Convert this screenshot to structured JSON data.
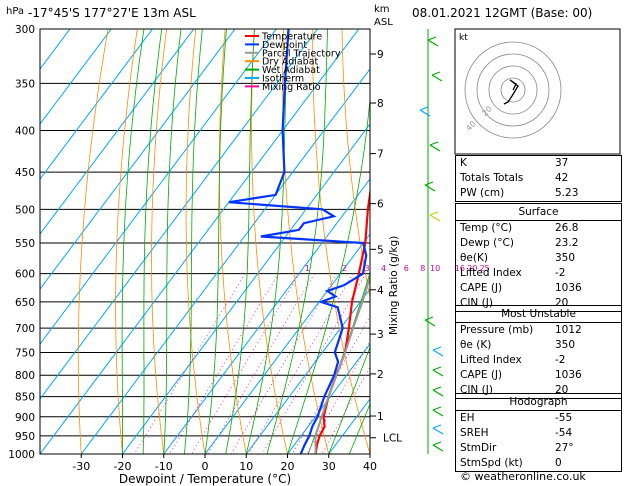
{
  "header": {
    "location": "-17°45'S  177°27'E  13m  ASL",
    "datetime": "08.01.2021  12GMT  (Base: 00)",
    "hpa_unit": "hPa",
    "km_unit": "km",
    "asl_unit": "ASL",
    "mixing_ratio_axis": "Mixing Ratio (g/kg)"
  },
  "legend": [
    {
      "label": "Temperature",
      "color": "#ff0000"
    },
    {
      "label": "Dewpoint",
      "color": "#0033ff"
    },
    {
      "label": "Parcel Trajectory",
      "color": "#999999"
    },
    {
      "label": "Dry Adiabat",
      "color": "#ff8c00"
    },
    {
      "label": "Wet Adiabat",
      "color": "#00aa00"
    },
    {
      "label": "Isotherm",
      "color": "#00aaff"
    },
    {
      "label": "Mixing Ratio",
      "color": "#ff00aa"
    }
  ],
  "chart_data": {
    "type": "line",
    "title": "",
    "xlabel": "Dewpoint / Temperature (°C)",
    "ylabel": "hPa",
    "x_ticks": [
      "-30",
      "-20",
      "-10",
      "0",
      "10",
      "20",
      "30",
      "40"
    ],
    "pressure_levels": [
      "300",
      "350",
      "400",
      "450",
      "500",
      "550",
      "600",
      "650",
      "700",
      "750",
      "800",
      "850",
      "900",
      "950",
      "1000"
    ],
    "km_ticks": [
      {
        "label": "9",
        "p": 322
      },
      {
        "label": "8",
        "p": 370
      },
      {
        "label": "7",
        "p": 427
      },
      {
        "label": "6",
        "p": 492
      },
      {
        "label": "5",
        "p": 560
      },
      {
        "label": "4",
        "p": 628
      },
      {
        "label": "3",
        "p": 712
      },
      {
        "label": "2",
        "p": 797
      },
      {
        "label": "1",
        "p": 898
      },
      {
        "label": "LCL",
        "p": 955
      }
    ],
    "mixing_ratio_labels": [
      {
        "label": "1",
        "t": -8
      },
      {
        "label": "2",
        "t": 1
      },
      {
        "label": "3",
        "t": 6.5
      },
      {
        "label": "4",
        "t": 10.5
      },
      {
        "label": "6",
        "t": 16
      },
      {
        "label": "8",
        "t": 20
      },
      {
        "label": "10",
        "t": 23
      },
      {
        "label": "16",
        "t": 29
      },
      {
        "label": "20",
        "t": 32
      },
      {
        "label": "25",
        "t": 35
      }
    ],
    "series": [
      {
        "name": "Temperature",
        "color": "#ff0000",
        "p": [
          1000,
          975,
          950,
          925,
          900,
          850,
          800,
          750,
          700,
          650,
          600,
          550,
          500,
          450,
          400,
          350
        ],
        "t": [
          26.8,
          25.5,
          24.5,
          24.0,
          22.0,
          19.5,
          17.5,
          15.5,
          12.0,
          8.0,
          4.5,
          0.5,
          -5.0,
          -10.5,
          -17.0,
          -25.0
        ]
      },
      {
        "name": "Dewpoint",
        "color": "#0033ff",
        "p": [
          1000,
          975,
          950,
          925,
          900,
          850,
          800,
          770,
          750,
          700,
          660,
          650,
          640,
          630,
          620,
          600,
          570,
          550,
          540,
          530,
          520,
          510,
          500,
          490,
          480,
          450,
          400,
          350,
          300
        ],
        "t": [
          23.2,
          22.5,
          22.0,
          21.0,
          20.5,
          18.5,
          17.0,
          15.5,
          13.0,
          10.5,
          5.5,
          0.5,
          3.0,
          0.0,
          3.0,
          5.5,
          3.0,
          0.0,
          -26.0,
          -18.0,
          -18.0,
          -12.0,
          -16.0,
          -40.0,
          -30.0,
          -32.0,
          -40.0,
          -48.0,
          -57.0
        ]
      },
      {
        "name": "Parcel Trajectory",
        "color": "#999999",
        "p": [
          1000,
          950,
          900,
          850,
          800,
          750,
          700,
          650,
          600,
          550,
          500,
          450,
          400,
          350,
          320
        ],
        "t": [
          26.8,
          23.5,
          21.5,
          19.5,
          17.5,
          15.5,
          13.0,
          10.5,
          7.5,
          4.0,
          0.5,
          -3.5,
          -9.0,
          -15.5,
          -20.0
        ]
      }
    ]
  },
  "hodograph": {
    "label": "kt",
    "ring_labels": [
      "40",
      "20"
    ]
  },
  "indices": {
    "top": [
      {
        "label": "K",
        "value": "37"
      },
      {
        "label": "Totals Totals",
        "value": "42"
      },
      {
        "label": "PW (cm)",
        "value": "5.23"
      }
    ],
    "surface": {
      "title": "Surface",
      "rows": [
        {
          "label": "Temp (°C)",
          "value": "26.8"
        },
        {
          "label": "Dewp (°C)",
          "value": "23.2"
        },
        {
          "label": "θe(K)",
          "value": "350"
        },
        {
          "label": "Lifted Index",
          "value": "-2"
        },
        {
          "label": "CAPE (J)",
          "value": "1036"
        },
        {
          "label": "CIN (J)",
          "value": "20"
        }
      ]
    },
    "most_unstable": {
      "title": "Most Unstable",
      "rows": [
        {
          "label": "Pressure (mb)",
          "value": "1012"
        },
        {
          "label": "θe (K)",
          "value": "350"
        },
        {
          "label": "Lifted Index",
          "value": "-2"
        },
        {
          "label": "CAPE (J)",
          "value": "1036"
        },
        {
          "label": "CIN (J)",
          "value": "20"
        }
      ]
    },
    "hodograph": {
      "title": "Hodograph",
      "rows": [
        {
          "label": "EH",
          "value": "-55"
        },
        {
          "label": "SREH",
          "value": "-54"
        },
        {
          "label": "StmDir",
          "value": "27°"
        },
        {
          "label": "StmSpd (kt)",
          "value": "0"
        }
      ]
    }
  },
  "credit": "© weatheronline.co.uk"
}
